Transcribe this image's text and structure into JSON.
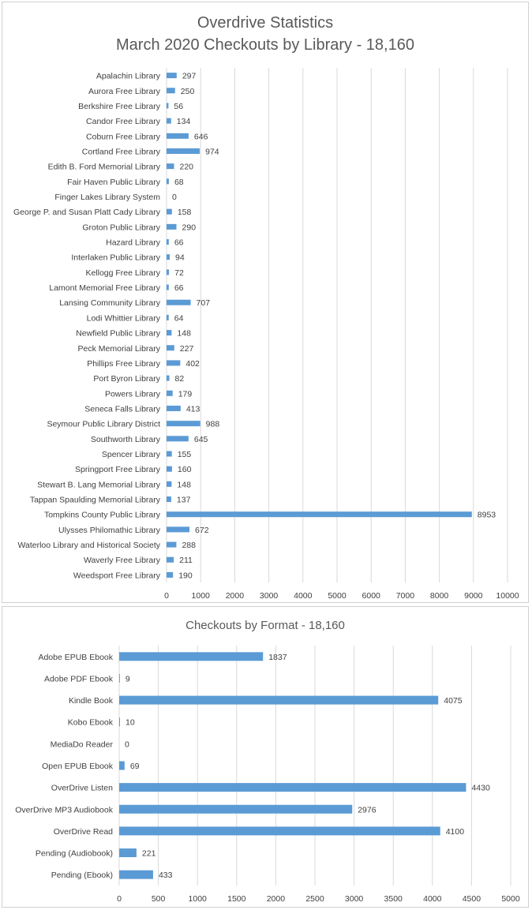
{
  "chart_data": [
    {
      "type": "bar",
      "orientation": "horizontal",
      "title": "Overdrive Statistics",
      "subtitle": "March 2020 Checkouts by Library - 18,160",
      "categories": [
        "Apalachin Library",
        "Aurora Free Library",
        "Berkshire Free Library",
        "Candor Free Library",
        "Coburn Free Library",
        "Cortland Free Library",
        "Edith B. Ford Memorial Library",
        "Fair Haven Public Library",
        "Finger Lakes Library System",
        "George P. and Susan Platt Cady Library",
        "Groton Public Library",
        "Hazard Library",
        "Interlaken Public Library",
        "Kellogg Free Library",
        "Lamont Memorial Free Library",
        "Lansing Community Library",
        "Lodi Whittier Library",
        "Newfield Public Library",
        "Peck Memorial Library",
        "Phillips Free Library",
        "Port Byron Library",
        "Powers Library",
        "Seneca Falls Library",
        "Seymour Public Library District",
        "Southworth Library",
        "Spencer Library",
        "Springport Free Library",
        "Stewart B. Lang Memorial Library",
        "Tappan Spaulding Memorial Library",
        "Tompkins County Public Library",
        "Ulysses Philomathic Library",
        "Waterloo Library and Historical Society",
        "Waverly Free Library",
        "Weedsport Free Library"
      ],
      "values": [
        297,
        250,
        56,
        134,
        646,
        974,
        220,
        68,
        0,
        158,
        290,
        66,
        94,
        72,
        66,
        707,
        64,
        148,
        227,
        402,
        82,
        179,
        413,
        988,
        645,
        155,
        160,
        148,
        137,
        8953,
        672,
        288,
        211,
        190
      ],
      "xlim": [
        0,
        10000
      ],
      "xticks": [
        0,
        1000,
        2000,
        3000,
        4000,
        5000,
        6000,
        7000,
        8000,
        9000,
        10000
      ],
      "grid": true,
      "bar_color": "#5b9bd5"
    },
    {
      "type": "bar",
      "orientation": "horizontal",
      "title": "Checkouts by Format - 18,160",
      "categories": [
        "Adobe EPUB Ebook",
        "Adobe PDF Ebook",
        "Kindle Book",
        "Kobo Ebook",
        "MediaDo Reader",
        "Open EPUB Ebook",
        "OverDrive Listen",
        "OverDrive MP3 Audiobook",
        "OverDrive Read",
        "Pending (Audiobook)",
        "Pending (Ebook)"
      ],
      "values": [
        1837,
        9,
        4075,
        10,
        0,
        69,
        4430,
        2976,
        4100,
        221,
        433
      ],
      "xlim": [
        0,
        5000
      ],
      "xticks": [
        0,
        500,
        1000,
        1500,
        2000,
        2500,
        3000,
        3500,
        4000,
        4500,
        5000
      ],
      "grid": true,
      "bar_color": "#5b9bd5"
    }
  ]
}
